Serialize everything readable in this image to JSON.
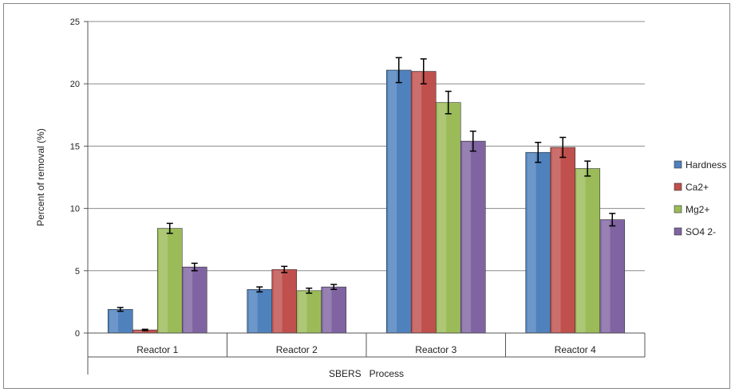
{
  "chart_data": {
    "type": "bar",
    "title": "",
    "xlabel": "SBERS   Process",
    "ylabel": "Percent of removal (%)",
    "ylim": [
      0,
      25
    ],
    "yticks": [
      0,
      5,
      10,
      15,
      20,
      25
    ],
    "grid": true,
    "legend": "right",
    "categories": [
      "Reactor 1",
      "Reactor 2",
      "Reactor 3",
      "Reactor 4"
    ],
    "series": [
      {
        "name": "Hardness",
        "color": "#4f81bd",
        "values": [
          1.9,
          3.5,
          21.1,
          14.5
        ],
        "errors": [
          0.15,
          0.2,
          1.0,
          0.8
        ]
      },
      {
        "name": "Ca2+",
        "color": "#c0504d",
        "values": [
          0.25,
          5.1,
          21.0,
          14.9
        ],
        "errors": [
          0.05,
          0.25,
          1.0,
          0.8
        ]
      },
      {
        "name": "Mg2+",
        "color": "#9bbb59",
        "values": [
          8.4,
          3.4,
          18.5,
          13.2
        ],
        "errors": [
          0.4,
          0.2,
          0.9,
          0.6
        ]
      },
      {
        "name": "SO4 2-",
        "color": "#8064a2",
        "values": [
          5.3,
          3.7,
          15.4,
          9.1
        ],
        "errors": [
          0.3,
          0.2,
          0.8,
          0.5
        ]
      }
    ]
  }
}
